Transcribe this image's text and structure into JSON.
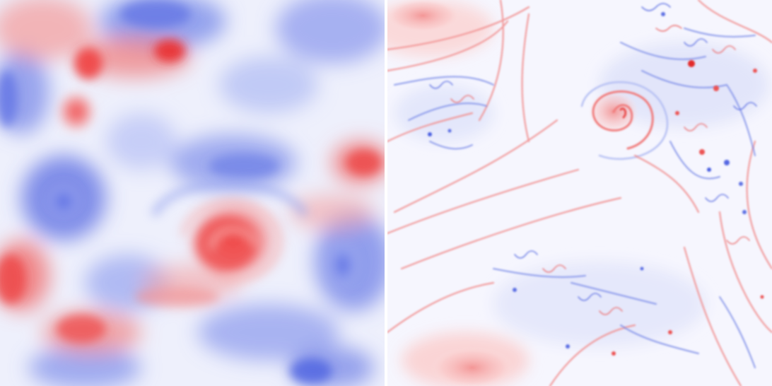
{
  "figure": {
    "panels": [
      {
        "id": "left",
        "style": "smooth-blobs",
        "colormap": [
          "#3b4cc0",
          "#ffffff",
          "#e8282a"
        ]
      },
      {
        "id": "right",
        "style": "fine-filaments",
        "colormap": [
          "#3b4cc0",
          "#ffffff",
          "#e8282a"
        ]
      }
    ]
  }
}
